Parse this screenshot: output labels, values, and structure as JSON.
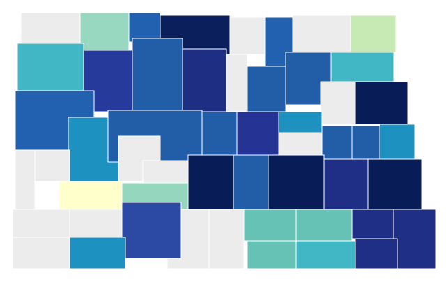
{
  "map": {
    "counties": [
      {
        "color": "#ececec"
      },
      {
        "color": "#99d8c0"
      },
      {
        "color": "#2161b0"
      },
      {
        "color": "#0b1f5c"
      },
      {
        "color": "#ececec"
      },
      {
        "color": "#2161b0"
      },
      {
        "color": "#ececec"
      },
      {
        "color": "#c7eab4"
      },
      {
        "color": "#41b6c4"
      },
      {
        "color": "#253a9a"
      },
      {
        "color": "#225ea8"
      },
      {
        "color": "#1d2e83"
      },
      {
        "color": "#ececec"
      },
      {
        "color": "#225ea8"
      },
      {
        "color": "#225ea8"
      },
      {
        "color": "#41b6c4"
      },
      {
        "color": "#ececec"
      },
      {
        "color": "#081d58"
      },
      {
        "color": "#2161b0"
      },
      {
        "color": "#1d91c0"
      },
      {
        "color": "#225ea8"
      },
      {
        "color": "#225ea8"
      },
      {
        "color": "#253494"
      },
      {
        "color": "#1d91c0"
      },
      {
        "color": "#ececec"
      },
      {
        "color": "#225ea8"
      },
      {
        "color": "#225ea8"
      },
      {
        "color": "#1d91c0"
      },
      {
        "color": "#ececec"
      },
      {
        "color": "#ececec"
      },
      {
        "color": "#ffffcc"
      },
      {
        "color": "#ececec"
      },
      {
        "color": "#ececec"
      },
      {
        "color": "#95d6be"
      },
      {
        "color": "#081d58"
      },
      {
        "color": "#225ea8"
      },
      {
        "color": "#081d58"
      },
      {
        "color": "#1f2f85"
      },
      {
        "color": "#081d58"
      },
      {
        "color": "#ececec"
      },
      {
        "color": "#ececec"
      },
      {
        "color": "#ececec"
      },
      {
        "color": "#2c4aa3"
      },
      {
        "color": "#ececec"
      },
      {
        "color": "#66c2b4"
      },
      {
        "color": "#66c2b4"
      },
      {
        "color": "#1f2f85"
      },
      {
        "color": "#1f2f85"
      },
      {
        "color": "#ececec"
      },
      {
        "color": "#1d91c0"
      },
      {
        "color": "#66c2b4"
      },
      {
        "color": "#41b6c4"
      },
      {
        "color": "#1f2f85"
      }
    ]
  }
}
